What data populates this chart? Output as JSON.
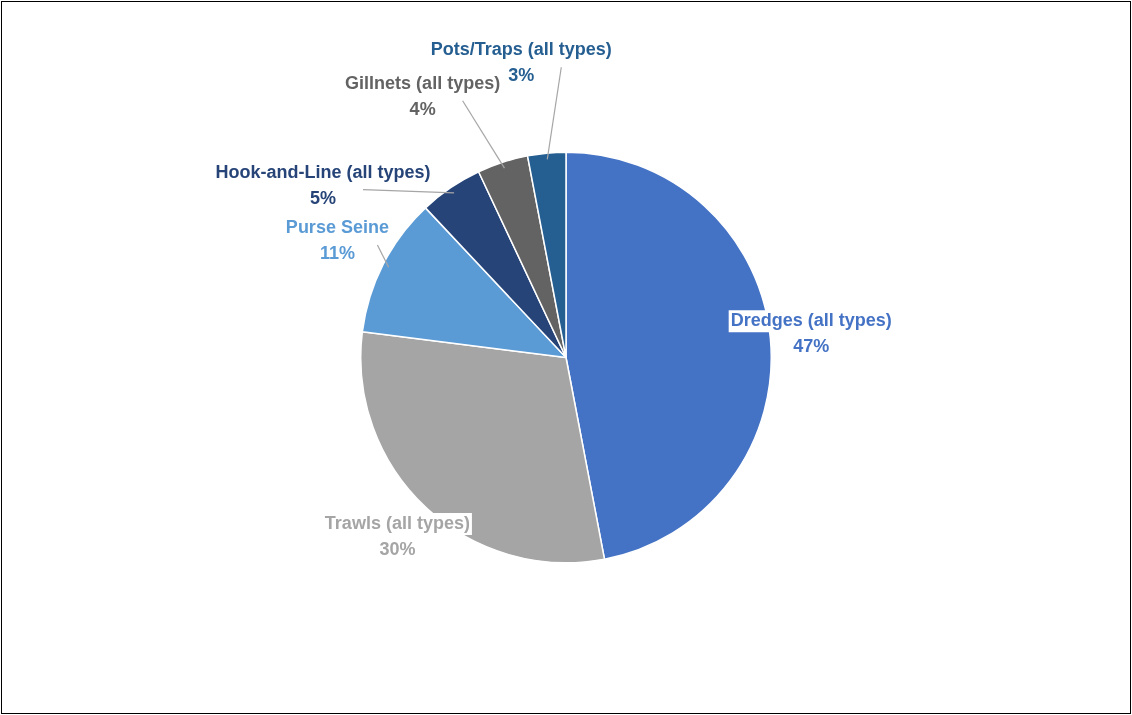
{
  "chart_data": {
    "type": "pie",
    "categories": [
      "Dredges (all types)",
      "Trawls (all types)",
      "Purse Seine",
      "Hook-and-Line (all types)",
      "Gillnets (all types)",
      "Pots/Traps (all types)"
    ],
    "values": [
      47,
      30,
      11,
      5,
      4,
      3
    ],
    "value_labels": [
      "47%",
      "30%",
      "11%",
      "5%",
      "4%",
      "3%"
    ],
    "colors": [
      "#4472c4",
      "#a5a5a5",
      "#5b9bd5",
      "#264478",
      "#636363",
      "#255e91"
    ],
    "legend": false
  }
}
